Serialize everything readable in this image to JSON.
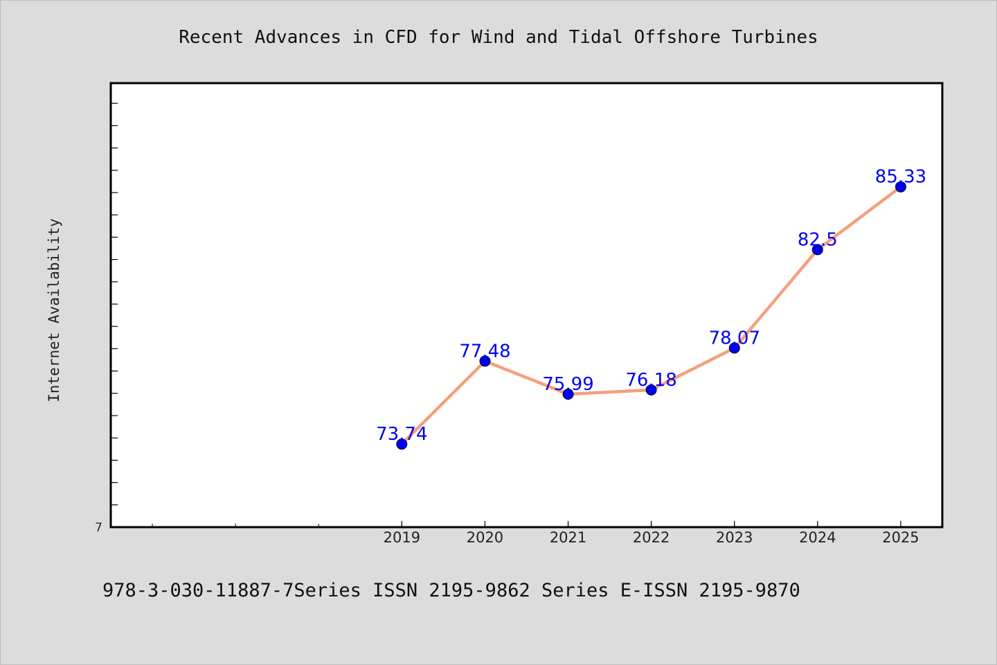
{
  "chart_data": {
    "type": "line",
    "title": "Recent Advances in CFD for Wind and Tidal Offshore Turbines",
    "ylabel": "Internet Availability",
    "xlabel": "",
    "x": [
      2019,
      2020,
      2021,
      2022,
      2023,
      2024,
      2025
    ],
    "x_tick_labels": [
      "2019",
      "2020",
      "2021",
      "2022",
      "2023",
      "2024",
      "2025"
    ],
    "x_range": [
      2015.5,
      2025.5
    ],
    "series": [
      {
        "values": [
          73.74,
          77.48,
          75.99,
          76.18,
          78.07,
          82.5,
          85.33
        ],
        "labels": [
          "73.74",
          "77.48",
          "75.99",
          "76.18",
          "78.07",
          "82.5",
          "85.33"
        ]
      }
    ],
    "ylim": [
      70,
      90
    ],
    "y_tick_label": "7",
    "grid": false,
    "line_color": "#f4a07c",
    "marker_color": "#0000ee",
    "label_color": "#0000ee"
  },
  "footer": {
    "text": "978-3-030-11887-7Series ISSN 2195-9862 Series E-ISSN 2195-9870"
  }
}
